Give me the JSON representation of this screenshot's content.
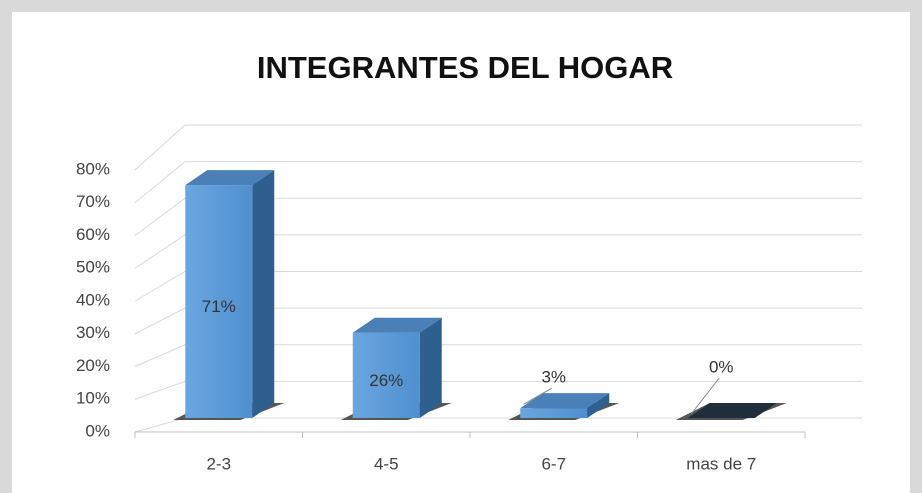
{
  "chart_data": {
    "type": "bar3d",
    "title": "INTEGRANTES DEL HOGAR",
    "categories": [
      "2-3",
      "4-5",
      "6-7",
      "mas de 7"
    ],
    "values": [
      71,
      26,
      3,
      0
    ],
    "value_labels": [
      "71%",
      "26%",
      "3%",
      "0%"
    ],
    "color": "#5b9bd5",
    "ylim": [
      0,
      80
    ],
    "yticks": [
      {
        "value": 0,
        "label": "0%"
      },
      {
        "value": 10,
        "label": "10%"
      },
      {
        "value": 20,
        "label": "20%"
      },
      {
        "value": 30,
        "label": "30%"
      },
      {
        "value": 40,
        "label": "40%"
      },
      {
        "value": 50,
        "label": "50%"
      },
      {
        "value": 60,
        "label": "60%"
      },
      {
        "value": 70,
        "label": "70%"
      },
      {
        "value": 80,
        "label": "80%"
      }
    ],
    "grid": true
  }
}
